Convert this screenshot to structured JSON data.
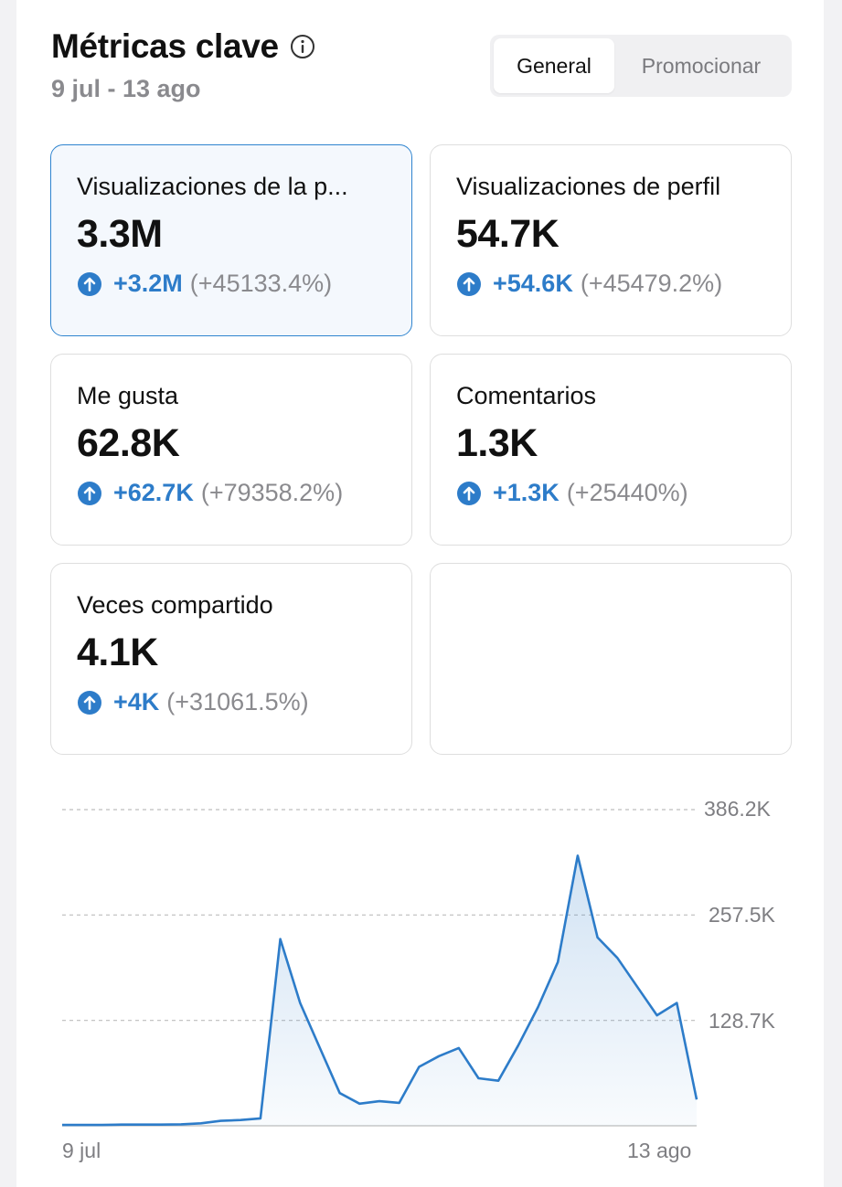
{
  "header": {
    "title": "Métricas clave",
    "info_icon": "info-circle-icon",
    "date_range": "9 jul - 13 ago"
  },
  "tabs": [
    {
      "label": "General",
      "active": true
    },
    {
      "label": "Promocionar",
      "active": false
    }
  ],
  "metrics": [
    {
      "label": "Visualizaciones de la p...",
      "value": "3.3M",
      "delta": "+3.2M",
      "pct": "(+45133.4%)",
      "selected": true
    },
    {
      "label": "Visualizaciones de perfil",
      "value": "54.7K",
      "delta": "+54.6K",
      "pct": "(+45479.2%)",
      "selected": false
    },
    {
      "label": "Me gusta",
      "value": "62.8K",
      "delta": "+62.7K",
      "pct": "(+79358.2%)",
      "selected": false
    },
    {
      "label": "Comentarios",
      "value": "1.3K",
      "delta": "+1.3K",
      "pct": "(+25440%)",
      "selected": false
    },
    {
      "label": "Veces compartido",
      "value": "4.1K",
      "delta": "+4K",
      "pct": "(+31061.5%)",
      "selected": false
    }
  ],
  "colors": {
    "accent": "#2d7cc9",
    "selected_border": "#2f84cf",
    "selected_bg": "#f4f8fd"
  },
  "chart_data": {
    "type": "area",
    "x_start_label": "9 jul",
    "x_end_label": "13 ago",
    "y_ticks": [
      "386.2K",
      "257.5K",
      "128.7K"
    ],
    "y_tick_values": [
      386200,
      257500,
      128700
    ],
    "ylim": [
      0,
      386200
    ],
    "grid": true,
    "values": [
      1000,
      1000,
      1000,
      1500,
      1500,
      1500,
      1800,
      3000,
      6000,
      7000,
      9000,
      228000,
      150000,
      95000,
      40000,
      27000,
      30000,
      28000,
      72000,
      85000,
      95000,
      58000,
      55000,
      98000,
      145000,
      200000,
      330000,
      230000,
      205000,
      170000,
      135000,
      150000,
      32000
    ]
  }
}
